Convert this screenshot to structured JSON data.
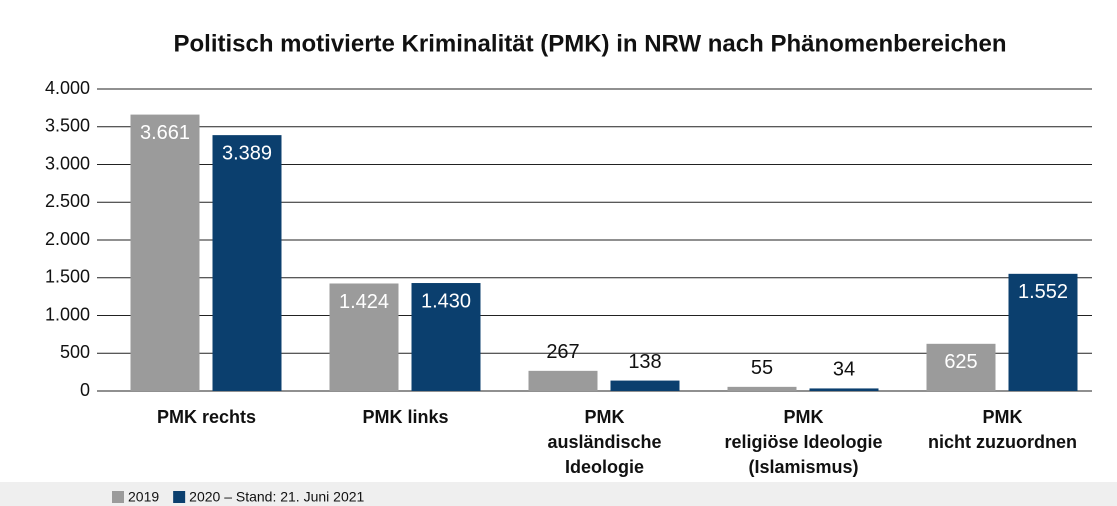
{
  "chart_data": {
    "type": "bar",
    "title": "Politisch motivierte Kriminalität (PMK) in NRW nach Phänomenbereichen",
    "categories": [
      [
        "PMK rechts"
      ],
      [
        "PMK links"
      ],
      [
        "PMK",
        "ausländische",
        "Ideologie"
      ],
      [
        "PMK",
        "religiöse Ideologie",
        "(Islamismus)"
      ],
      [
        "PMK",
        "nicht zuzuordnen"
      ]
    ],
    "series": [
      {
        "name": "2019",
        "color": "#9b9b9b",
        "values": [
          3661,
          1424,
          267,
          55,
          625
        ],
        "value_labels": [
          "3.661",
          "1.424",
          "267",
          "55",
          "625"
        ]
      },
      {
        "name": "2020 – Stand: 21. Juni 2021",
        "color": "#0b3f6e",
        "values": [
          3389,
          1430,
          138,
          34,
          1552
        ],
        "value_labels": [
          "3.389",
          "1.430",
          "138",
          "34",
          "1.552"
        ]
      }
    ],
    "ylim": [
      0,
      4000
    ],
    "yticks": [
      0,
      500,
      {
        "value": 1000,
        "label": "1.000"
      },
      {
        "value": 1500,
        "label": "1.500"
      },
      {
        "value": 2000,
        "label": "2.000"
      },
      {
        "value": 2500,
        "label": "2.500"
      },
      {
        "value": 3000,
        "label": "3.000"
      },
      {
        "value": 3500,
        "label": "3.500"
      },
      {
        "value": 4000,
        "label": "4.000"
      }
    ],
    "grid": true
  }
}
